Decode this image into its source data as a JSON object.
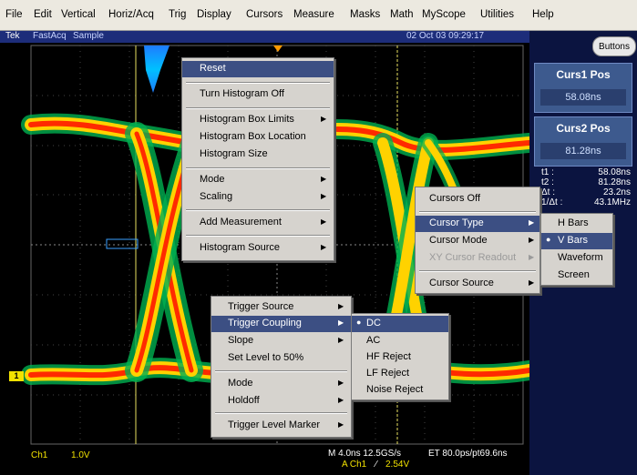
{
  "menubar": [
    "File",
    "Edit",
    "Vertical",
    "Horiz/Acq",
    "Trig",
    "Display",
    "Cursors",
    "Measure",
    "Masks",
    "Math",
    "MyScope",
    "Utilities",
    "Help"
  ],
  "status": {
    "brand": "Tek",
    "mode": "FastAcq",
    "acq": "Sample",
    "datetime": "02 Oct 03 09:29:17"
  },
  "right": {
    "buttons_label": "Buttons",
    "curs1": {
      "title": "Curs1 Pos",
      "value": "58.08ns"
    },
    "curs2": {
      "title": "Curs2 Pos",
      "value": "81.28ns"
    },
    "readout": [
      {
        "k": "t1 :",
        "v": "58.08ns"
      },
      {
        "k": "t2 :",
        "v": "81.28ns"
      },
      {
        "k": "Δt :",
        "v": "23.2ns"
      },
      {
        "k": "1/Δt :",
        "v": "43.1MHz"
      }
    ]
  },
  "histogram_menu": {
    "items": [
      "Reset",
      "Turn Histogram Off",
      "Histogram Box Limits",
      "Histogram Box Location",
      "Histogram Size",
      "Mode",
      "Scaling",
      "Add Measurement",
      "Histogram Source"
    ]
  },
  "cursor_menu": {
    "items": [
      "Cursors Off",
      "Cursor Type",
      "Cursor Mode",
      "XY Cursor Readout",
      "Cursor Source"
    ]
  },
  "cursor_type_menu": {
    "items": [
      "H Bars",
      "V Bars",
      "Waveform",
      "Screen"
    ]
  },
  "trigger_menu": {
    "items": [
      "Trigger Source",
      "Trigger Coupling",
      "Slope",
      "Set Level to 50%",
      "Mode",
      "Holdoff",
      "Trigger Level Marker"
    ]
  },
  "coupling_menu": {
    "items": [
      "DC",
      "AC",
      "HF Reject",
      "LF Reject",
      "Noise Reject"
    ]
  },
  "bottom": {
    "ch": "Ch1",
    "volts": "1.0V",
    "timebase": "M 4.0ns 12.5GS/s",
    "et": "ET 80.0ps/pt69.6ns",
    "trig_ch": "A  Ch1",
    "trig_slope": "⁄",
    "trig_level": "2.54V",
    "marker": "1"
  },
  "colors": {
    "menu_highlight": "#3c4f83",
    "trace_hot": "#ff2a00",
    "trace_warm": "#ffd200",
    "trace_cool": "#00b050",
    "trace_cold": "#1e7cff",
    "panel": "#3d5a8e"
  }
}
